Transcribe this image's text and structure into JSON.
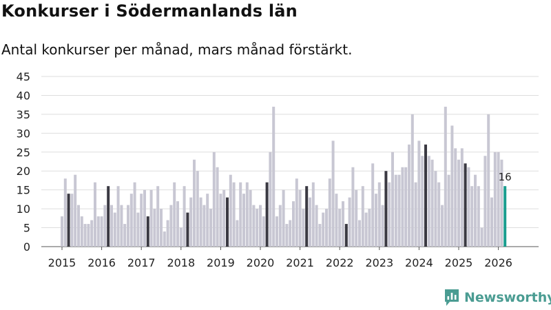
{
  "header": {
    "title": "Konkurser i Södermanlands län",
    "subtitle": "Antal konkurser per månad, mars månad förstärkt."
  },
  "branding": {
    "name": "Newsworthy",
    "icon": "newsworthy-logo-icon",
    "color": "#4a9c92"
  },
  "colors": {
    "bar": "#c8c7d3",
    "highlight": "#3a3942",
    "latest": "#1a9e8f",
    "grid": "#dddddd"
  },
  "chart_data": {
    "type": "bar",
    "title": "Konkurser i Södermanlands län",
    "xlabel": "",
    "ylabel": "",
    "ylim": [
      0,
      45
    ],
    "yticks": [
      0,
      5,
      10,
      15,
      20,
      25,
      30,
      35,
      40,
      45
    ],
    "start": "2015-01",
    "end": "2026-03",
    "highlight_month": "mars",
    "latest_label": "16",
    "xtick_labels": [
      "2015",
      "2016",
      "2017",
      "2018",
      "2019",
      "2020",
      "2021",
      "2022",
      "2023",
      "2024",
      "2025",
      "2026"
    ],
    "series": [
      {
        "name": "Antal konkurser",
        "values": [
          8,
          18,
          14,
          14,
          19,
          11,
          8,
          6,
          6,
          7,
          17,
          8,
          8,
          11,
          16,
          11,
          9,
          16,
          11,
          6,
          11,
          14,
          17,
          9,
          14,
          15,
          8,
          15,
          10,
          16,
          10,
          4,
          7,
          11,
          17,
          12,
          5,
          16,
          9,
          13,
          23,
          20,
          13,
          11,
          14,
          10,
          25,
          21,
          14,
          15,
          13,
          19,
          17,
          7,
          17,
          14,
          17,
          15,
          11,
          10,
          11,
          8,
          17,
          25,
          37,
          8,
          11,
          15,
          6,
          7,
          12,
          18,
          15,
          10,
          16,
          13,
          17,
          11,
          6,
          9,
          10,
          18,
          28,
          14,
          10,
          12,
          6,
          13,
          21,
          15,
          7,
          16,
          9,
          10,
          22,
          14,
          17,
          11,
          20,
          17,
          25,
          19,
          19,
          21,
          21,
          27,
          35,
          17,
          28,
          24,
          27,
          24,
          23,
          20,
          17,
          11,
          37,
          19,
          32,
          26,
          23,
          26,
          22,
          21,
          16,
          19,
          16,
          5,
          24,
          35,
          13,
          25,
          25,
          23,
          16
        ]
      }
    ]
  }
}
